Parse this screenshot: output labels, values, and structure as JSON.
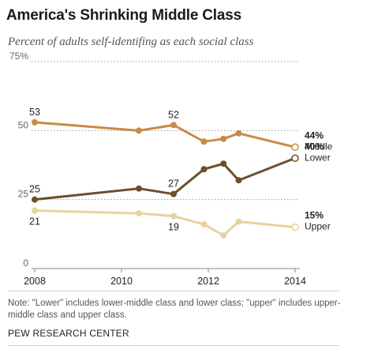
{
  "header": {
    "title": "America's Shrinking Middle Class",
    "subtitle": "Percent of adults self-identifing as each social class"
  },
  "footer": {
    "note": "Note: \"Lower\" includes lower-middle class and lower class; \"upper\" includes upper-middle class and upper class.",
    "source": "PEW RESEARCH CENTER"
  },
  "colors": {
    "middle": "#c98a47",
    "lower": "#6e4e2d",
    "upper": "#e8d39e",
    "grid": "#999999",
    "text": "#222222"
  },
  "chart_data": {
    "type": "line",
    "title": "America's Shrinking Middle Class",
    "subtitle": "Percent of adults self-identifing as each social class",
    "xlim": [
      2008,
      2014
    ],
    "ylim": [
      0,
      75
    ],
    "x_ticks": [
      "2008",
      "2010",
      "2012",
      "2014"
    ],
    "y_ticks": [
      "0",
      "25",
      "50",
      "75%"
    ],
    "y_tick_values": [
      0,
      25,
      50,
      75
    ],
    "grid": true,
    "series": [
      {
        "name": "Middle",
        "x": [
          2008.0,
          2010.4,
          2011.2,
          2011.9,
          2012.35,
          2012.7,
          2014.0
        ],
        "values": [
          53,
          50,
          52,
          46,
          47,
          49,
          44
        ],
        "labels": [
          {
            "index": 0,
            "text": "53"
          },
          {
            "index": 2,
            "text": "52"
          }
        ],
        "end_value_label": "44%",
        "end_name_label": "Middle"
      },
      {
        "name": "Lower",
        "x": [
          2008.0,
          2010.4,
          2011.2,
          2011.9,
          2012.35,
          2012.7,
          2014.0
        ],
        "values": [
          25,
          29,
          27,
          36,
          38,
          32,
          40
        ],
        "labels": [
          {
            "index": 0,
            "text": "25"
          },
          {
            "index": 2,
            "text": "27"
          }
        ],
        "end_value_label": "40%",
        "end_name_label": "Lower"
      },
      {
        "name": "Upper",
        "x": [
          2008.0,
          2010.4,
          2011.2,
          2011.9,
          2012.35,
          2012.7,
          2014.0
        ],
        "values": [
          21,
          20,
          19,
          16,
          12,
          17,
          15
        ],
        "labels": [
          {
            "index": 0,
            "text": "21"
          },
          {
            "index": 2,
            "text": "19"
          }
        ],
        "end_value_label": "15%",
        "end_name_label": "Upper"
      }
    ]
  }
}
